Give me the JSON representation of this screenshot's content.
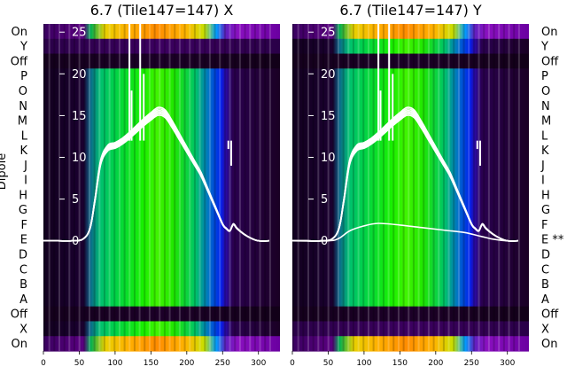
{
  "chart_data": [
    {
      "type": "heatmap",
      "title": "6.7 (Tile147=147) X",
      "ylabel": "Dipole",
      "xlim": [
        0,
        330
      ],
      "x_ticks": [
        0,
        50,
        100,
        150,
        200,
        250,
        300
      ],
      "row_labels": [
        "On",
        "Y",
        "Off",
        "P",
        "O",
        "N",
        "M",
        "L",
        "K",
        "J",
        "I",
        "H",
        "G",
        "F",
        "E",
        "D",
        "C",
        "B",
        "A",
        "Off",
        "X",
        "On"
      ],
      "overlay_ylim": [
        0,
        25
      ],
      "overlay_ticks": [
        0,
        5,
        10,
        15,
        20,
        25
      ],
      "dark_rows": [
        "Y",
        "Off"
      ],
      "overlay_series": [
        {
          "curve": "bandpass",
          "x": [
            0,
            20,
            40,
            55,
            65,
            72,
            80,
            90,
            100,
            110,
            120,
            130,
            140,
            150,
            160,
            170,
            180,
            190,
            200,
            210,
            220,
            230,
            240,
            250,
            255,
            260,
            265,
            270,
            280,
            290,
            300,
            315
          ],
          "y": [
            0,
            0,
            0,
            0.2,
            1.5,
            5,
            9.5,
            11.2,
            11.5,
            12,
            12.7,
            13.5,
            14.3,
            15,
            15.6,
            15.3,
            14,
            12.5,
            11,
            9.5,
            8,
            6,
            4,
            2,
            1.5,
            1.2,
            2,
            1.5,
            0.8,
            0.3,
            0,
            0
          ]
        }
      ]
    },
    {
      "type": "heatmap",
      "title": "6.7 (Tile147=147) Y",
      "xlim": [
        0,
        330
      ],
      "x_ticks": [
        0,
        50,
        100,
        150,
        200,
        250,
        300
      ],
      "row_labels": [
        "On",
        "Y",
        "Off",
        "P",
        "O",
        "N",
        "M",
        "L",
        "K",
        "J",
        "I",
        "H",
        "G",
        "F",
        "E **",
        "D",
        "C",
        "B",
        "A",
        "Off",
        "X",
        "On"
      ],
      "overlay_ylim": [
        0,
        25
      ],
      "overlay_ticks": [
        0,
        5,
        10,
        15,
        20,
        25
      ],
      "dark_rows": [
        "Off",
        "X"
      ],
      "overlay_series": [
        {
          "curve": "bandpass",
          "x": [
            0,
            20,
            40,
            55,
            65,
            72,
            80,
            90,
            100,
            110,
            120,
            130,
            140,
            150,
            160,
            170,
            180,
            190,
            200,
            210,
            220,
            230,
            240,
            250,
            255,
            260,
            265,
            270,
            280,
            290,
            300,
            315
          ],
          "y": [
            0,
            0,
            0,
            0.2,
            1.5,
            5,
            9.5,
            11.2,
            11.5,
            12,
            12.7,
            13.5,
            14.3,
            15,
            15.6,
            15.3,
            14,
            12.5,
            11,
            9.5,
            8,
            6,
            4,
            2,
            1.5,
            1.2,
            2,
            1.5,
            0.8,
            0.3,
            0,
            0
          ]
        },
        {
          "curve": "low",
          "x": [
            0,
            50,
            65,
            80,
            100,
            120,
            150,
            180,
            210,
            240,
            260,
            270,
            280,
            300,
            315
          ],
          "y": [
            0,
            0,
            0.3,
            1.2,
            1.8,
            2.1,
            1.9,
            1.6,
            1.3,
            1.0,
            0.6,
            0.4,
            0.2,
            0,
            0
          ]
        }
      ]
    }
  ]
}
